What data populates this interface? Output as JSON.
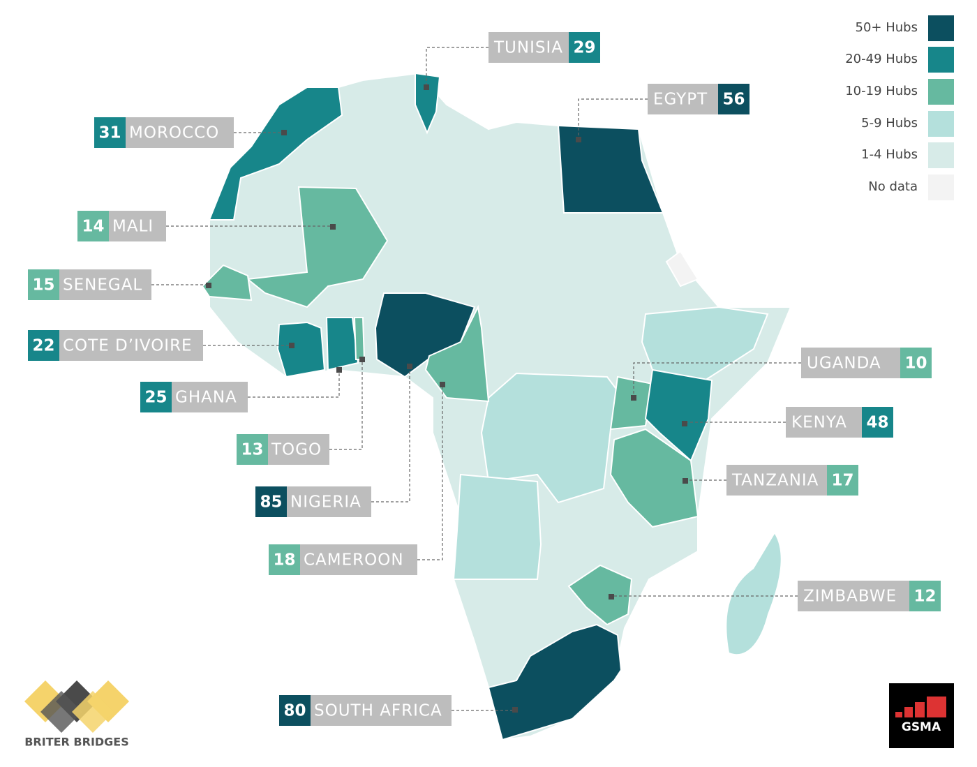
{
  "legend": [
    {
      "label": "50+ Hubs",
      "color": "#0c4f5f"
    },
    {
      "label": "20-49 Hubs",
      "color": "#17868a"
    },
    {
      "label": "10-19 Hubs",
      "color": "#66b9a0"
    },
    {
      "label": "5-9 Hubs",
      "color": "#b4e0dc"
    },
    {
      "label": "1-4 Hubs",
      "color": "#d7ebe8"
    },
    {
      "label": "No data",
      "color": "#f3f3f3"
    }
  ],
  "countries": [
    {
      "name": "TUNISIA",
      "hubs": "29",
      "color": "#17868a"
    },
    {
      "name": "EGYPT",
      "hubs": "56",
      "color": "#0c4f5f"
    },
    {
      "name": "MOROCCO",
      "hubs": "31",
      "color": "#17868a"
    },
    {
      "name": "MALI",
      "hubs": "14",
      "color": "#66b9a0"
    },
    {
      "name": "SENEGAL",
      "hubs": "15",
      "color": "#66b9a0"
    },
    {
      "name": "COTE D’IVOIRE",
      "hubs": "22",
      "color": "#17868a"
    },
    {
      "name": "GHANA",
      "hubs": "25",
      "color": "#17868a"
    },
    {
      "name": "TOGO",
      "hubs": "13",
      "color": "#66b9a0"
    },
    {
      "name": "NIGERIA",
      "hubs": "85",
      "color": "#0c4f5f"
    },
    {
      "name": "CAMEROON",
      "hubs": "18",
      "color": "#66b9a0"
    },
    {
      "name": "SOUTH AFRICA",
      "hubs": "80",
      "color": "#0c4f5f"
    },
    {
      "name": "UGANDA",
      "hubs": "10",
      "color": "#66b9a0"
    },
    {
      "name": "KENYA",
      "hubs": "48",
      "color": "#17868a"
    },
    {
      "name": "TANZANIA",
      "hubs": "17",
      "color": "#66b9a0"
    },
    {
      "name": "ZIMBABWE",
      "hubs": "12",
      "color": "#66b9a0"
    }
  ],
  "logos": {
    "briter": "BRITER BRIDGES",
    "gsma": "GSMA"
  }
}
